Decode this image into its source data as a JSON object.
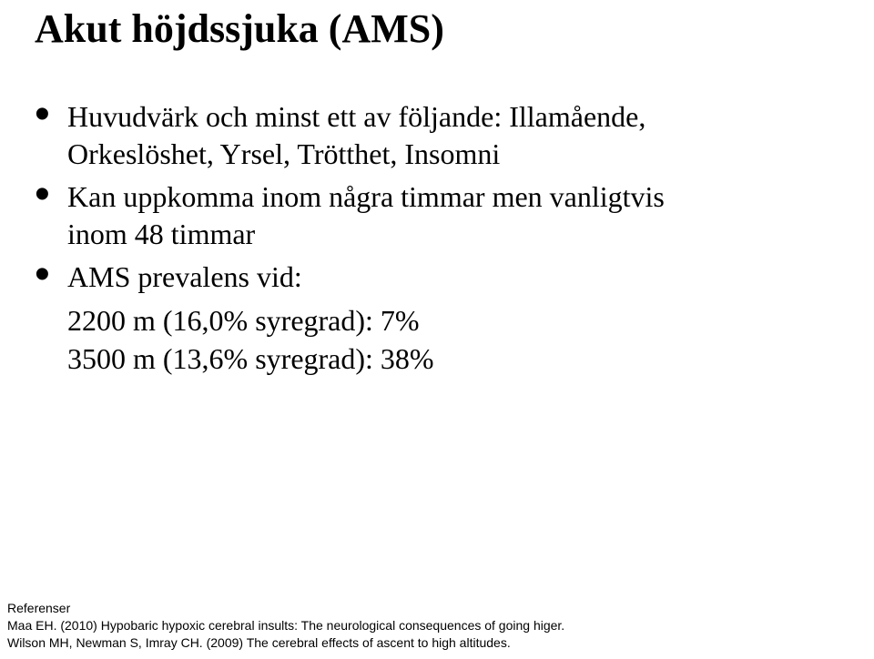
{
  "title": "Akut höjdssjuka (AMS)",
  "bullets": {
    "b1_l1": "Huvudvärk och minst ett av följande: Illamående,",
    "b1_l2": "Orkeslöshet, Yrsel, Trötthet, Insomni",
    "b2_l1": "Kan uppkomma inom några timmar men vanligtvis",
    "b2_l2": "inom 48 timmar",
    "b3_l1": "AMS prevalens vid:",
    "b3_sub1": "2200 m (16,0% syregrad):   7%",
    "b3_sub2": "3500 m (13,6% syregrad): 38%"
  },
  "references": {
    "heading": "Referenser",
    "r1": "Maa EH. (2010)  Hypobaric hypoxic cerebral insults: The neurological consequences of going higer.",
    "r2": "Wilson MH, Newman S, Imray CH. (2009) The cerebral effects of ascent to high altitudes."
  },
  "style": {
    "background_color": "#ffffff",
    "text_color": "#000000",
    "title_fontsize_pt": 33,
    "body_fontsize_pt": 24,
    "refs_fontsize_pt": 10,
    "font_family_title_body": "Times New Roman",
    "font_family_refs": "Arial",
    "bullet_glyph": "•"
  }
}
